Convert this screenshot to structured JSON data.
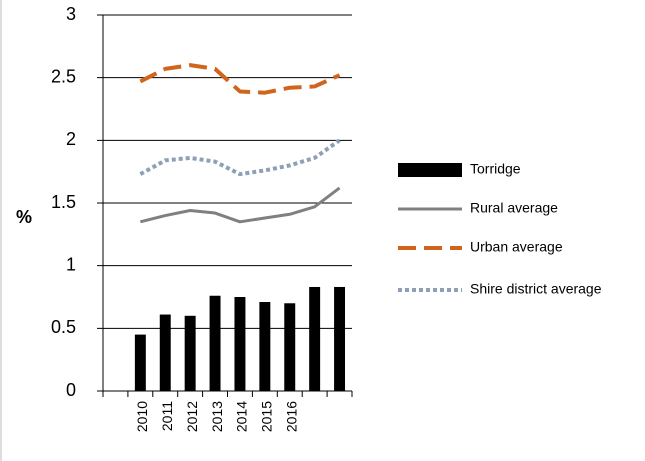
{
  "chart_data": {
    "type": "bar",
    "ylabel": "%",
    "categories": [
      null,
      "2010",
      "2011",
      "2012",
      "2013",
      "2014",
      "2015",
      "2016",
      null,
      null
    ],
    "series": [
      {
        "name": "Torridge",
        "type": "bar",
        "color": "#000000",
        "values": [
          null,
          0.45,
          0.61,
          0.6,
          0.76,
          0.75,
          0.71,
          0.7,
          0.83,
          0.83
        ]
      },
      {
        "name": "Rural average",
        "type": "line",
        "style": "solid",
        "color": "#808080",
        "values": [
          null,
          1.35,
          1.4,
          1.44,
          1.42,
          1.35,
          1.38,
          1.41,
          1.47,
          1.62
        ]
      },
      {
        "name": "Urban average",
        "type": "line",
        "style": "dashed",
        "color": "#d0661e",
        "values": [
          null,
          2.47,
          2.57,
          2.6,
          2.57,
          2.39,
          2.38,
          2.42,
          2.43,
          2.52
        ]
      },
      {
        "name": "Shire district average",
        "type": "line",
        "style": "dotted",
        "color": "#8ea0b8",
        "values": [
          null,
          1.73,
          1.84,
          1.86,
          1.83,
          1.73,
          1.76,
          1.8,
          1.86,
          2.0
        ]
      }
    ],
    "ylim": [
      0,
      3
    ],
    "yticks": [
      0,
      0.5,
      1,
      1.5,
      2,
      2.5,
      3
    ],
    "grid": true,
    "legend": "right"
  }
}
